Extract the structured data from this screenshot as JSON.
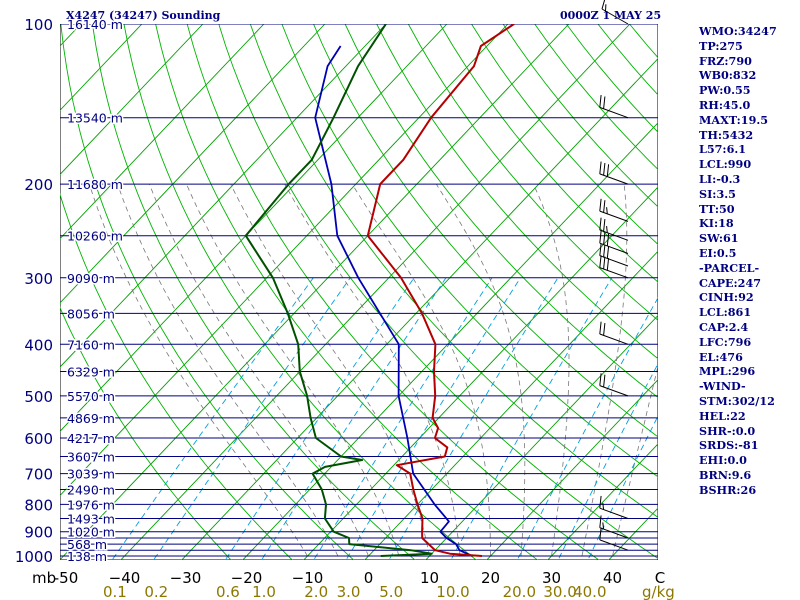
{
  "title_left": "X4247 (34247) Sounding",
  "title_right": "0000Z  1 MAY 25",
  "colors": {
    "background": "#ffffff",
    "isobar": "#000080",
    "isotherm": "#00a000",
    "dry_adiabat": "#00b400",
    "moist_adiabat": "#787878",
    "mixing_ratio": "#00a0e0",
    "temperature": "#b40000",
    "dewpoint": "#005000",
    "parcel": "#0000b4",
    "pressure_label": "#000080",
    "temp_label": "#000000",
    "mixing_label": "#8c7800"
  },
  "indices": [
    "WMO:34247",
    "TP:275",
    "FRZ:790",
    "WB0:832",
    "PW:0.55",
    "RH:45.0",
    "MAXT:19.5",
    "TH:5432",
    "L57:6.1",
    "LCL:990",
    "LI:-0.3",
    "SI:3.5",
    "TT:50",
    "KI:18",
    "SW:61",
    "EI:0.5",
    "-PARCEL-",
    "CAPE:247",
    "CINH:92",
    "LCL:861",
    "CAP:2.4",
    "LFC:796",
    "EL:476",
    "MPL:296",
    "-WIND-",
    "STM:302/12",
    "HEL:22",
    "SHR-:0.0",
    "SRDS:-81",
    "EHI:0.0",
    "BRN:9.6",
    "BSHR:26"
  ],
  "chart_data": {
    "type": "skew-t",
    "pressure_unit": "mb",
    "mixing_ratio_unit": "g/kg",
    "pressure_levels": [
      100,
      150,
      200,
      250,
      300,
      350,
      400,
      450,
      500,
      550,
      600,
      650,
      700,
      750,
      800,
      850,
      900,
      925,
      950,
      975,
      1000
    ],
    "pressure_tick_labels": [
      {
        "p": 100,
        "label": "100"
      },
      {
        "p": 200,
        "label": "200"
      },
      {
        "p": 300,
        "label": "300"
      },
      {
        "p": 400,
        "label": "400"
      },
      {
        "p": 500,
        "label": "500"
      },
      {
        "p": 600,
        "label": "600"
      },
      {
        "p": 700,
        "label": "700"
      },
      {
        "p": 800,
        "label": "800"
      },
      {
        "p": 900,
        "label": "900"
      },
      {
        "p": 1000,
        "label": "1000"
      }
    ],
    "height_labels": [
      {
        "p": 100,
        "label": "16140 m"
      },
      {
        "p": 150,
        "label": "13540 m"
      },
      {
        "p": 200,
        "label": "11680 m"
      },
      {
        "p": 250,
        "label": "10260 m"
      },
      {
        "p": 300,
        "label": "9090 m"
      },
      {
        "p": 350,
        "label": "8056 m"
      },
      {
        "p": 400,
        "label": "7160 m"
      },
      {
        "p": 450,
        "label": "6329 m"
      },
      {
        "p": 500,
        "label": "5570 m"
      },
      {
        "p": 550,
        "label": "4869 m"
      },
      {
        "p": 600,
        "label": "4217 m"
      },
      {
        "p": 650,
        "label": "3607 m"
      },
      {
        "p": 700,
        "label": "3039 m"
      },
      {
        "p": 750,
        "label": "2490 m"
      },
      {
        "p": 800,
        "label": "1976 m"
      },
      {
        "p": 850,
        "label": "1493 m"
      },
      {
        "p": 900,
        "label": "1020 m"
      },
      {
        "p": 950,
        "label": "568 m"
      },
      {
        "p": 1000,
        "label": "138 m"
      }
    ],
    "temperature_axis": {
      "ticks": [
        -50,
        -40,
        -30,
        -20,
        -10,
        0,
        10,
        20,
        30,
        40,
        50
      ],
      "labels": [
        "-50",
        "−40",
        "−30",
        "−20",
        "−10",
        "0",
        "10",
        "20",
        "30",
        "40",
        "C"
      ],
      "corner_label": "mb"
    },
    "mixing_ratio_lines": [
      {
        "w": 0.1,
        "label": "0.1"
      },
      {
        "w": 0.2,
        "label": "0.2"
      },
      {
        "w": 0.6,
        "label": "0.6"
      },
      {
        "w": 1.0,
        "label": "1.0"
      },
      {
        "w": 2.0,
        "label": "2.0"
      },
      {
        "w": 3.0,
        "label": "3.0"
      },
      {
        "w": 5.0,
        "label": "5.0"
      },
      {
        "w": 10.0,
        "label": "10.0"
      },
      {
        "w": 20.0,
        "label": "20.0"
      },
      {
        "w": 30.0,
        "label": "30.0"
      },
      {
        "w": 40.0,
        "label": "40.0"
      }
    ],
    "mixing_ratio_axis_label": "g/kg",
    "temperature_profile": [
      [
        1000,
        18.6
      ],
      [
        990,
        13.0
      ],
      [
        975,
        10.0
      ],
      [
        950,
        8.0
      ],
      [
        925,
        6.0
      ],
      [
        900,
        5.0
      ],
      [
        850,
        3.0
      ],
      [
        800,
        0.0
      ],
      [
        750,
        -3.0
      ],
      [
        700,
        -6.0
      ],
      [
        675,
        -9.5
      ],
      [
        650,
        -3.0
      ],
      [
        625,
        -4.0
      ],
      [
        600,
        -7.5
      ],
      [
        575,
        -8.5
      ],
      [
        550,
        -11.0
      ],
      [
        500,
        -14.0
      ],
      [
        450,
        -18.0
      ],
      [
        400,
        -22.0
      ],
      [
        350,
        -29.0
      ],
      [
        300,
        -38.0
      ],
      [
        250,
        -50.0
      ],
      [
        200,
        -56.0
      ],
      [
        180,
        -56.0
      ],
      [
        150,
        -58.0
      ],
      [
        120,
        -59.0
      ],
      [
        110,
        -61.0
      ],
      [
        100,
        -59.0
      ]
    ],
    "dewpoint_profile": [
      [
        1000,
        2.0
      ],
      [
        990,
        10.0
      ],
      [
        975,
        6.0
      ],
      [
        950,
        -5.0
      ],
      [
        925,
        -6.0
      ],
      [
        900,
        -9.5
      ],
      [
        850,
        -13.0
      ],
      [
        800,
        -15.0
      ],
      [
        750,
        -18.0
      ],
      [
        700,
        -22.0
      ],
      [
        680,
        -21.0
      ],
      [
        660,
        -16.0
      ],
      [
        650,
        -20.0
      ],
      [
        600,
        -27.0
      ],
      [
        550,
        -31.0
      ],
      [
        500,
        -35.0
      ],
      [
        450,
        -40.0
      ],
      [
        400,
        -44.5
      ],
      [
        350,
        -51.0
      ],
      [
        300,
        -59.0
      ],
      [
        250,
        -70.0
      ],
      [
        200,
        -71.0
      ],
      [
        180,
        -71.0
      ],
      [
        150,
        -74.0
      ],
      [
        120,
        -78.0
      ],
      [
        100,
        -80.0
      ]
    ],
    "parcel_profile": [
      [
        1000,
        17.0
      ],
      [
        975,
        14.0
      ],
      [
        950,
        12.5
      ],
      [
        925,
        10.0
      ],
      [
        900,
        8.0
      ],
      [
        861,
        7.8
      ],
      [
        800,
        2.8
      ],
      [
        700,
        -5.5
      ],
      [
        600,
        -12.0
      ],
      [
        500,
        -20.0
      ],
      [
        400,
        -28.0
      ],
      [
        300,
        -45.0
      ],
      [
        250,
        -55.0
      ],
      [
        200,
        -64.0
      ],
      [
        150,
        -77.0
      ],
      [
        120,
        -83.0
      ],
      [
        110,
        -84.0
      ]
    ],
    "wind_barbs": [
      {
        "p": 975,
        "dir": 290,
        "speed": 10
      },
      {
        "p": 925,
        "dir": 290,
        "speed": 15
      },
      {
        "p": 850,
        "dir": 290,
        "speed": 15
      },
      {
        "p": 500,
        "dir": 290,
        "speed": 20
      },
      {
        "p": 400,
        "dir": 290,
        "speed": 20
      },
      {
        "p": 300,
        "dir": 290,
        "speed": 30
      },
      {
        "p": 285,
        "dir": 290,
        "speed": 30
      },
      {
        "p": 270,
        "dir": 290,
        "speed": 30
      },
      {
        "p": 255,
        "dir": 290,
        "speed": 25
      },
      {
        "p": 235,
        "dir": 290,
        "speed": 25
      },
      {
        "p": 200,
        "dir": 290,
        "speed": 30
      },
      {
        "p": 150,
        "dir": 290,
        "speed": 20
      },
      {
        "p": 100,
        "dir": 300,
        "speed": 15
      }
    ]
  }
}
